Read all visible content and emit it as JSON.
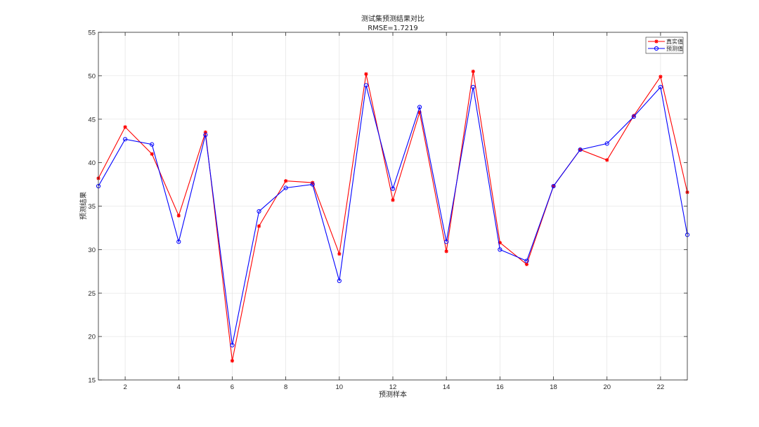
{
  "chart_data": {
    "type": "line",
    "title": "测试集预测结果对比",
    "subtitle": "RMSE=1.7219",
    "xlabel": "预测样本",
    "ylabel": "预测结果",
    "xlim": [
      1,
      23
    ],
    "ylim": [
      15,
      55
    ],
    "xticks": [
      2,
      4,
      6,
      8,
      10,
      12,
      14,
      16,
      18,
      20,
      22
    ],
    "yticks": [
      15,
      20,
      25,
      30,
      35,
      40,
      45,
      50,
      55
    ],
    "grid": true,
    "legend_position": "top-right",
    "x": [
      1,
      2,
      3,
      4,
      5,
      6,
      7,
      8,
      9,
      10,
      11,
      12,
      13,
      14,
      15,
      16,
      17,
      18,
      19,
      20,
      21,
      22,
      23
    ],
    "series": [
      {
        "name": "真实值",
        "color": "#ff0000",
        "marker": "asterisk",
        "values": [
          38.2,
          44.1,
          41.0,
          33.9,
          43.5,
          17.2,
          32.7,
          37.9,
          37.7,
          29.5,
          50.2,
          35.7,
          45.8,
          29.8,
          50.5,
          30.8,
          28.3,
          37.3,
          41.5,
          40.3,
          45.4,
          49.9,
          36.6
        ]
      },
      {
        "name": "预测值",
        "color": "#0000ff",
        "marker": "circle",
        "values": [
          37.3,
          42.7,
          42.1,
          30.9,
          43.2,
          19.0,
          34.4,
          37.1,
          37.5,
          26.4,
          48.9,
          37.0,
          46.4,
          30.9,
          48.7,
          30.0,
          28.7,
          37.3,
          41.5,
          42.2,
          45.3,
          48.7,
          31.7
        ]
      }
    ]
  }
}
